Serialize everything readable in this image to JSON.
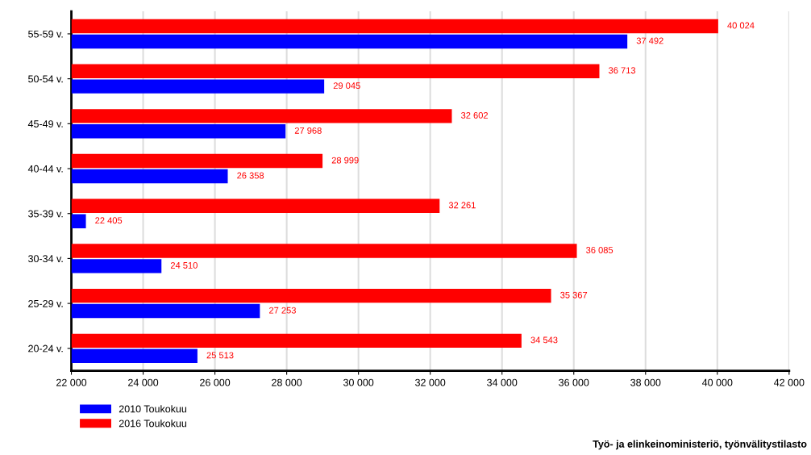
{
  "chart_data": {
    "type": "bar",
    "orientation": "horizontal",
    "categories": [
      "55-59 v.",
      "50-54 v.",
      "45-49 v.",
      "40-44 v.",
      "35-39 v.",
      "30-34 v.",
      "25-29 v.",
      "20-24 v."
    ],
    "series": [
      {
        "name": "2010 Toukokuu",
        "color": "#0000ff",
        "values": [
          37492,
          29045,
          27968,
          26358,
          22405,
          24510,
          27253,
          25513
        ],
        "value_labels": [
          "37 492",
          "29 045",
          "27 968",
          "26 358",
          "22 405",
          "24 510",
          "27 253",
          "25 513"
        ]
      },
      {
        "name": "2016 Toukokuu",
        "color": "#ff0000",
        "values": [
          40024,
          36713,
          32602,
          28999,
          32261,
          36085,
          35367,
          34543
        ],
        "value_labels": [
          "40 024",
          "36 713",
          "32 602",
          "28 999",
          "32 261",
          "36 085",
          "35 367",
          "34 543"
        ]
      }
    ],
    "xlim": [
      22000,
      42000
    ],
    "xticks": [
      {
        "value": 22000,
        "label": "22 000"
      },
      {
        "value": 24000,
        "label": "24 000"
      },
      {
        "value": 26000,
        "label": "26 000"
      },
      {
        "value": 28000,
        "label": "28 000"
      },
      {
        "value": 30000,
        "label": "30 000"
      },
      {
        "value": 32000,
        "label": "32 000"
      },
      {
        "value": 34000,
        "label": "34 000"
      },
      {
        "value": 36000,
        "label": "36 000"
      },
      {
        "value": 38000,
        "label": "38 000"
      },
      {
        "value": 40000,
        "label": "40 000"
      },
      {
        "value": 42000,
        "label": "42 000"
      }
    ],
    "grid": "x",
    "legend": "bottom left",
    "annotations": [
      "Työ- ja elinkeinoministeriö, työnvälitystilasto"
    ]
  }
}
